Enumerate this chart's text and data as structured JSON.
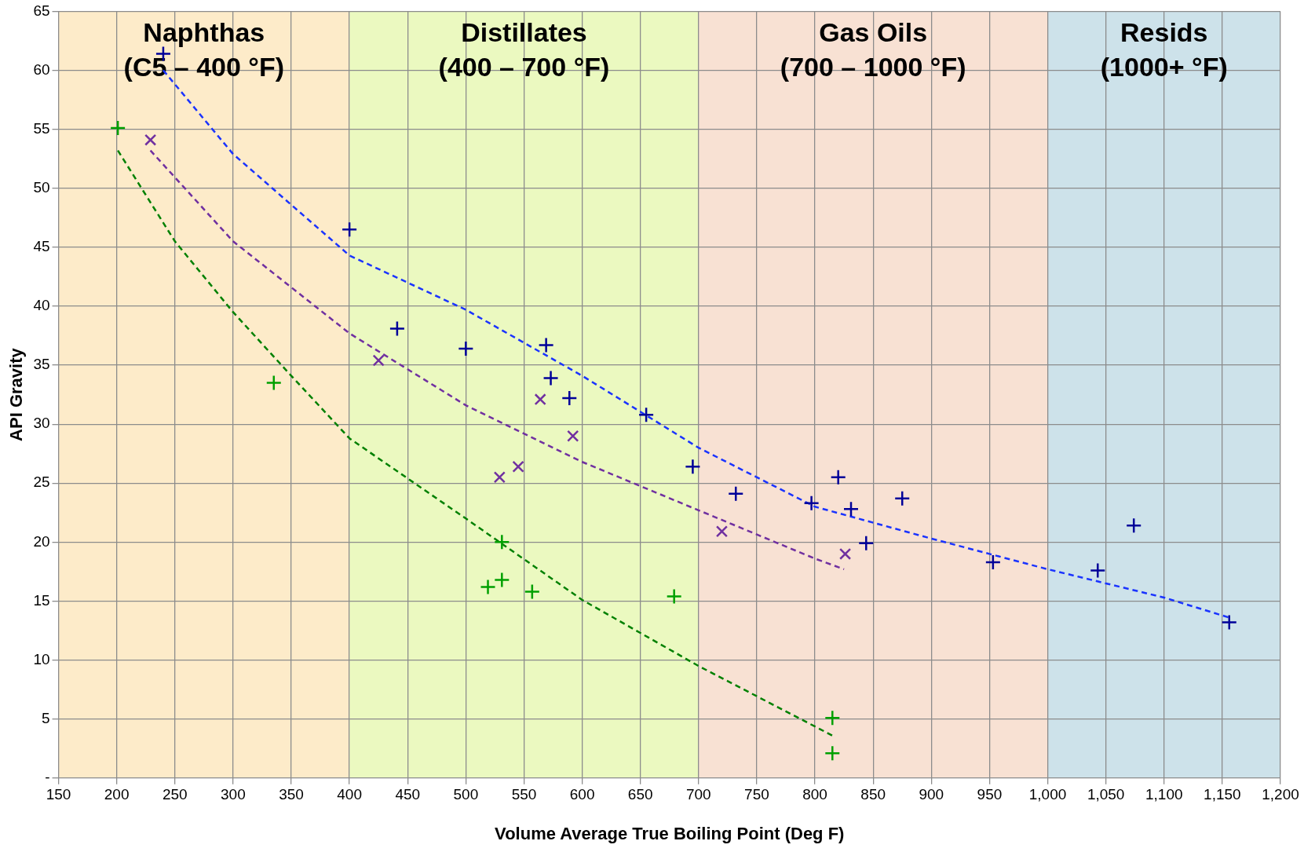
{
  "chart_data": {
    "type": "scatter",
    "xlabel": "Volume Average True Boiling Point (Deg F)",
    "ylabel": "API Gravity",
    "xlim": [
      150,
      1200
    ],
    "ylim": [
      0,
      65
    ],
    "xticks": [
      150,
      200,
      250,
      300,
      350,
      400,
      450,
      500,
      550,
      600,
      650,
      700,
      750,
      800,
      850,
      900,
      950,
      {
        "value": 1000,
        "label": "1,000"
      },
      {
        "value": 1050,
        "label": "1,050"
      },
      {
        "value": 1100,
        "label": "1,100"
      },
      {
        "value": 1150,
        "label": "1,150"
      },
      {
        "value": 1200,
        "label": "1,200"
      }
    ],
    "yticks": [
      {
        "value": 0,
        "label": "-"
      },
      5,
      10,
      15,
      20,
      25,
      30,
      35,
      40,
      45,
      50,
      55,
      60,
      65
    ],
    "grid": true,
    "legend": false,
    "bands": [
      {
        "axis": "x",
        "from": 150,
        "to": 400,
        "label": "Naphthas\n(C5 – 400 °F)",
        "color": "#fdebc9"
      },
      {
        "axis": "x",
        "from": 400,
        "to": 700,
        "label": "Distillates\n(400 – 700 °F)",
        "color": "#ebf9c0"
      },
      {
        "axis": "x",
        "from": 700,
        "to": 1000,
        "label": "Gas Oils\n(700 – 1000 °F)",
        "color": "#f8e1d3"
      },
      {
        "axis": "x",
        "from": 1000,
        "to": 1200,
        "label": "Resids\n(1000+ °F)",
        "color": "#cde2ea"
      }
    ],
    "series": [
      {
        "marker": "cross",
        "color": "#000099",
        "x": [
          240,
          400,
          441,
          500,
          569,
          573,
          589,
          655,
          695,
          732,
          797,
          820,
          831,
          844,
          875,
          953,
          1043,
          1074,
          1156
        ],
        "values": [
          61.4,
          46.5,
          38.1,
          36.4,
          36.7,
          33.9,
          32.2,
          30.8,
          26.4,
          24.1,
          23.3,
          25.5,
          22.8,
          19.9,
          23.7,
          18.3,
          17.6,
          21.4,
          13.2
        ]
      },
      {
        "marker": "x",
        "color": "#7030a0",
        "x": [
          229,
          425,
          564,
          592,
          529,
          545,
          720,
          826
        ],
        "values": [
          54.1,
          35.4,
          32.1,
          29.0,
          25.5,
          26.4,
          20.9,
          19.0
        ]
      },
      {
        "marker": "cross",
        "color": "#00a000",
        "x": [
          201,
          335,
          531,
          519,
          531,
          557,
          679,
          815,
          815
        ],
        "values": [
          55.1,
          33.5,
          20.0,
          16.2,
          16.8,
          15.8,
          15.4,
          5.1,
          2.1
        ]
      },
      {
        "type": "line",
        "marker": "none",
        "line_style": "dashed",
        "color": "#1a33ff",
        "x": [
          240,
          300,
          400,
          500,
          600,
          700,
          800,
          900,
          1000,
          1100,
          1156
        ],
        "values": [
          60.0,
          52.9,
          44.3,
          39.7,
          34.1,
          28.0,
          23.0,
          20.3,
          17.7,
          15.3,
          13.6
        ]
      },
      {
        "type": "line",
        "marker": "none",
        "line_style": "dashed",
        "color": "#7030a0",
        "x": [
          229,
          300,
          400,
          500,
          600,
          700,
          800,
          825
        ],
        "values": [
          53.2,
          45.5,
          37.7,
          31.6,
          26.8,
          22.7,
          18.6,
          17.7
        ]
      },
      {
        "type": "line",
        "marker": "none",
        "line_style": "dashed",
        "color": "#008000",
        "x": [
          201,
          250,
          300,
          350,
          400,
          500,
          600,
          700,
          815
        ],
        "values": [
          53.2,
          45.5,
          39.5,
          34.1,
          28.8,
          22.0,
          15.1,
          9.5,
          3.6
        ]
      }
    ]
  }
}
